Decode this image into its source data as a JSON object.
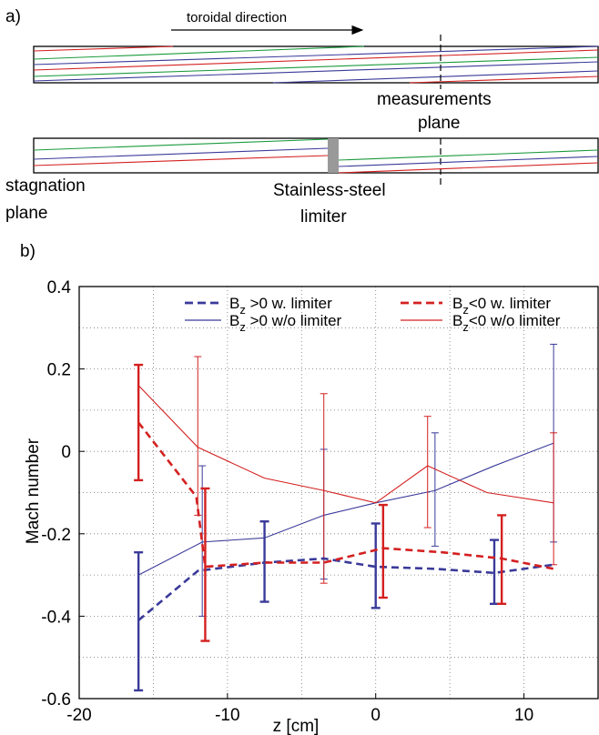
{
  "panel_a": {
    "label": "a)",
    "direction_label": "toroidal direction",
    "measurement_label_1": "measurements",
    "measurement_label_2": "plane",
    "stagnation_label_1": "stagnation",
    "stagnation_label_2": "plane",
    "limiter_label_1": "Stainless-steel",
    "limiter_label_2": "limiter",
    "colors": {
      "red": "#d42020",
      "green": "#1a9a3c",
      "blue": "#3a3a9a",
      "limiter": "#999999"
    }
  },
  "panel_b": {
    "label": "b)"
  },
  "chart_data": {
    "type": "line",
    "xlabel": "z [cm]",
    "ylabel": "Mach  number",
    "xlim": [
      -20,
      15
    ],
    "ylim": [
      -0.6,
      0.4
    ],
    "xticks": [
      -20,
      -10,
      0,
      10
    ],
    "yticks": [
      -0.6,
      -0.4,
      -0.2,
      0,
      0.2,
      0.4
    ],
    "xtick_labels": [
      "-20",
      "-10",
      "0",
      "10"
    ],
    "ytick_labels": [
      "-0.6",
      "-0.4",
      "-0.2",
      "0",
      "0.2",
      "0.4"
    ],
    "grid": true,
    "grid_style": "dotted",
    "legend_position": "top",
    "series": [
      {
        "name": "B",
        "name_sub": "z",
        "name_rest": " >0 w. limiter",
        "color": "#3a3a9a",
        "dashed": true,
        "weight": "thick",
        "x": [
          -16,
          -12,
          -7.5,
          -3.5,
          0,
          4,
          8,
          12
        ],
        "y": [
          -0.41,
          -0.29,
          -0.27,
          -0.26,
          -0.28,
          -0.285,
          -0.295,
          -0.275
        ],
        "err_low": [
          -0.58,
          null,
          -0.365,
          null,
          -0.38,
          null,
          -0.37,
          null
        ],
        "err_high": [
          -0.245,
          null,
          -0.17,
          null,
          -0.175,
          null,
          -0.215,
          null
        ]
      },
      {
        "name": "B",
        "name_sub": "z",
        "name_rest": " >0 w/o limiter",
        "color": "#3a3a9a",
        "dashed": false,
        "weight": "thin",
        "x": [
          -16,
          -11.7,
          -7.5,
          -3.5,
          0,
          4,
          8,
          12
        ],
        "y": [
          -0.3,
          -0.22,
          -0.21,
          -0.155,
          -0.125,
          -0.095,
          -0.035,
          0.02
        ],
        "err_low": [
          null,
          -0.4,
          null,
          -0.31,
          null,
          -0.23,
          null,
          -0.22
        ],
        "err_high": [
          null,
          -0.035,
          null,
          0.005,
          null,
          0.045,
          null,
          0.26
        ]
      },
      {
        "name": "B",
        "name_sub": "z",
        "name_rest": "<0 w. limiter",
        "color": "#d42020",
        "dashed": true,
        "weight": "thick",
        "x": [
          -16,
          -12.1,
          -11.5,
          -7.5,
          -3.5,
          0.5,
          4.5,
          8.5,
          12
        ],
        "y": [
          0.07,
          -0.11,
          -0.28,
          -0.27,
          -0.27,
          -0.235,
          -0.245,
          -0.26,
          -0.285
        ],
        "err_low": [
          -0.07,
          null,
          -0.46,
          null,
          null,
          -0.355,
          null,
          -0.37,
          null
        ],
        "err_high": [
          0.21,
          null,
          -0.09,
          null,
          null,
          -0.13,
          null,
          -0.155,
          null
        ]
      },
      {
        "name": "B",
        "name_sub": "z",
        "name_rest": "<0 w/o limiter",
        "color": "#d42020",
        "dashed": false,
        "weight": "thin",
        "x": [
          -16,
          -12,
          -7.5,
          -3.5,
          0,
          3.5,
          7.5,
          12
        ],
        "y": [
          0.16,
          0.01,
          -0.065,
          -0.095,
          -0.125,
          -0.035,
          -0.1,
          -0.125
        ],
        "err_low": [
          null,
          -0.155,
          null,
          -0.32,
          null,
          -0.185,
          null,
          -0.275
        ],
        "err_high": [
          null,
          0.23,
          null,
          0.14,
          null,
          0.085,
          null,
          0.045
        ]
      }
    ]
  }
}
